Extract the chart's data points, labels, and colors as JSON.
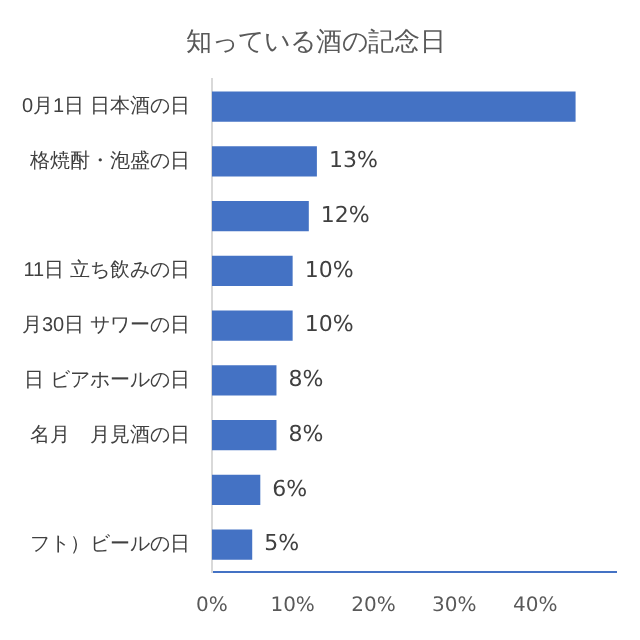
{
  "chart_data": {
    "type": "bar",
    "orientation": "horizontal",
    "title": "知っている酒の記念日",
    "categories": [
      "0月1日 日本酒の日",
      "格焼酎・泡盛の日",
      null,
      "11日 立ち飲みの日",
      "月30日 サワーの日",
      "日 ビアホールの日",
      "名月　月見酒の日",
      null,
      "フト）ビールの日"
    ],
    "values": [
      45,
      13,
      12,
      10,
      10,
      8,
      8,
      6,
      5
    ],
    "value_labels": [
      null,
      "13%",
      "12%",
      "10%",
      "10%",
      "8%",
      "8%",
      "6%",
      "5%"
    ],
    "color": "#4472c4",
    "xlim": [
      0,
      50
    ],
    "xticks": [
      {
        "value": 0,
        "label": "0%"
      },
      {
        "value": 10,
        "label": "10%"
      },
      {
        "value": 20,
        "label": "20%"
      },
      {
        "value": 30,
        "label": "30%"
      },
      {
        "value": 40,
        "label": "40%"
      }
    ],
    "grid": false,
    "legend": false
  }
}
